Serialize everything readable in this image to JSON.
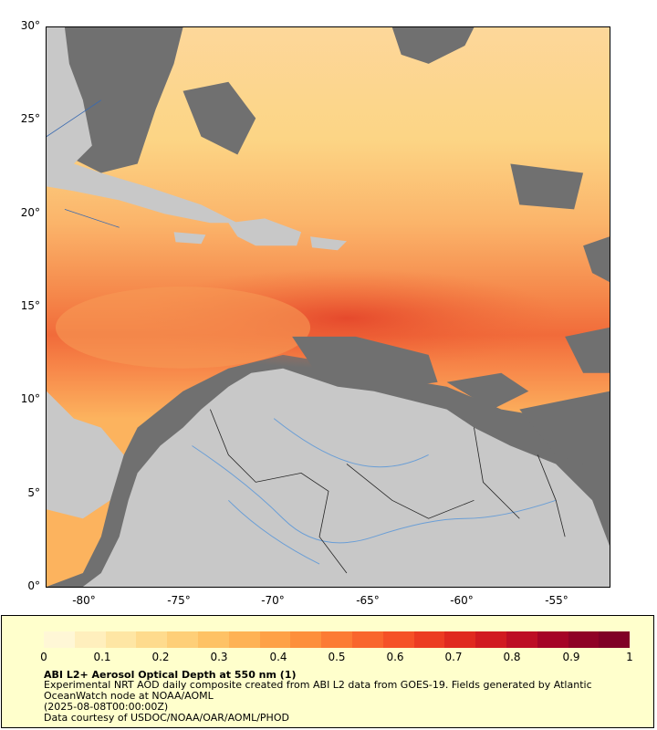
{
  "map": {
    "y_axis_labels": [
      "30°",
      "25°",
      "20°",
      "15°",
      "10°",
      "5°",
      "0°"
    ],
    "x_axis_labels": [
      "-80°",
      "-75°",
      "-70°",
      "-65°",
      "-60°",
      "-55°"
    ],
    "lat_range": [
      0,
      30
    ],
    "lon_range": [
      -82.3,
      -52.4
    ],
    "colors": {
      "ocean_no_data": "#707070",
      "land": "#c8c8c8",
      "aod_low": "#ffeebb",
      "aod_high": "#800026"
    }
  },
  "legend": {
    "colorbar_labels": [
      "0",
      "0.1",
      "0.2",
      "0.3",
      "0.4",
      "0.5",
      "0.6",
      "0.7",
      "0.8",
      "0.9",
      "1"
    ],
    "colorbar_range": [
      0,
      1
    ],
    "title": "ABI L2+ Aerosol Optical Depth at 550 nm (1)",
    "line1": "Experimental NRT AOD daily composite created from ABI L2 data from GOES-19. Fields generated by Atlantic OceanWatch node at NOAA/AOML",
    "line2": "(2025-08-08T00:00:00Z)",
    "line3": "Data courtesy of USDOC/NOAA/OAR/AOML/PHOD"
  }
}
